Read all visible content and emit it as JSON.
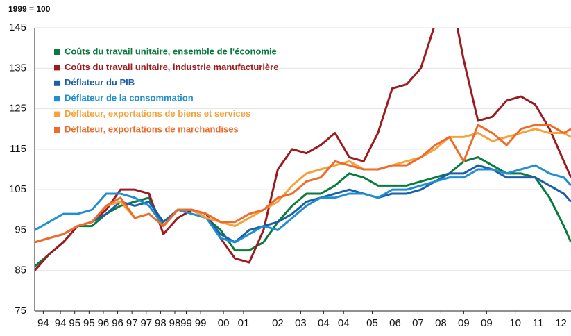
{
  "chart_data": {
    "type": "line",
    "subtitle": "1999 = 100",
    "x": [
      1994,
      1994.5,
      1995,
      1995.5,
      1996,
      1996.5,
      1997,
      1997.5,
      1998,
      1998.5,
      1999,
      1999.5,
      2000,
      2000.5,
      2001,
      2001.5,
      2002,
      2002.5,
      2003,
      2003.5,
      2004,
      2004.5,
      2005,
      2005.5,
      2006,
      2006.5,
      2007,
      2007.5,
      2008,
      2008.5,
      2009,
      2009.5,
      2010,
      2010.5,
      2011,
      2011.5,
      2012,
      2012.5,
      2012.75
    ],
    "series": [
      {
        "name": "Coûts du travail unitaire, ensemble de l'économie",
        "color": "#0a7a3e",
        "values": [
          86,
          89,
          92,
          96,
          96,
          99,
          101,
          102,
          103,
          96,
          100,
          100,
          98,
          95,
          90,
          90,
          92,
          97,
          101,
          104,
          104,
          106,
          109,
          108,
          106,
          106,
          106,
          107,
          108,
          109,
          112,
          113,
          111,
          109,
          109,
          108,
          103,
          96,
          92
        ]
      },
      {
        "name": "Coûts du travail unitaire, industrie manufacturière",
        "color": "#9b1b1e",
        "values": [
          85,
          89,
          92,
          96,
          97,
          100,
          105,
          105,
          104,
          94,
          98,
          100,
          99,
          93,
          88,
          87,
          95,
          110,
          115,
          114,
          116,
          119,
          113,
          112,
          119,
          130,
          131,
          135,
          146,
          155,
          137,
          122,
          123,
          127,
          128,
          126,
          120,
          112,
          108
        ]
      },
      {
        "name": "Déflateur du PIB",
        "color": "#1a5fa8",
        "values": [
          92,
          93,
          94,
          96,
          97,
          99,
          102,
          101,
          102,
          97,
          100,
          100,
          98,
          94,
          92,
          95,
          96,
          97,
          99,
          102,
          103,
          104,
          105,
          104,
          103,
          104,
          104,
          105,
          107,
          109,
          109,
          111,
          110,
          108,
          108,
          108,
          106,
          104,
          102
        ]
      },
      {
        "name": "Déflateur de la consommation",
        "color": "#1f8fcf",
        "values": [
          95,
          97,
          99,
          99,
          100,
          104,
          104,
          103,
          101,
          96,
          100,
          99,
          98,
          93,
          92,
          94,
          96,
          95,
          98,
          101,
          103,
          103,
          104,
          104,
          103,
          105,
          105,
          106,
          107,
          108,
          108,
          110,
          110,
          109,
          110,
          111,
          109,
          108,
          106
        ]
      },
      {
        "name": "Déflateur, exportations de biens et services",
        "color": "#f5a23a",
        "values": [
          92,
          93,
          94,
          96,
          97,
          101,
          102,
          98,
          99,
          96,
          100,
          100,
          98,
          97,
          96,
          98,
          100,
          102,
          106,
          109,
          110,
          111,
          112,
          110,
          110,
          111,
          112,
          113,
          115,
          118,
          118,
          119,
          117,
          118,
          119,
          120,
          119,
          119,
          118
        ]
      },
      {
        "name": "Déflateur, exportations de marchandises",
        "color": "#ee6b2a",
        "values": [
          92,
          93,
          94,
          96,
          97,
          101,
          103,
          98,
          99,
          96,
          100,
          100,
          99,
          97,
          97,
          99,
          100,
          103,
          104,
          107,
          108,
          112,
          111,
          110,
          110,
          111,
          111,
          113,
          116,
          118,
          112,
          121,
          119,
          116,
          120,
          121,
          121,
          119,
          120
        ]
      }
    ],
    "xlim": [
      1994,
      2012.75
    ],
    "xticks": [
      {
        "value": 1994.3,
        "label": "94"
      },
      {
        "value": 1994.9,
        "label": "94"
      },
      {
        "value": 1995.4,
        "label": "95"
      },
      {
        "value": 1995.9,
        "label": "95"
      },
      {
        "value": 1996.4,
        "label": "96"
      },
      {
        "value": 1996.9,
        "label": "96"
      },
      {
        "value": 1997.4,
        "label": "97"
      },
      {
        "value": 1997.9,
        "label": "97"
      },
      {
        "value": 1998.4,
        "label": "98"
      },
      {
        "value": 1998.9,
        "label": "98"
      },
      {
        "value": 1999.3,
        "label": "99"
      },
      {
        "value": 1999.8,
        "label": "99"
      },
      {
        "value": 2000.6,
        "label": "00"
      },
      {
        "value": 2001.3,
        "label": "01"
      },
      {
        "value": 2002.5,
        "label": "02"
      },
      {
        "value": 2003.3,
        "label": "03"
      },
      {
        "value": 2004.1,
        "label": "04"
      },
      {
        "value": 2004.8,
        "label": "04"
      },
      {
        "value": 2005.8,
        "label": "05"
      },
      {
        "value": 2006.6,
        "label": "06"
      },
      {
        "value": 2007.4,
        "label": "07"
      },
      {
        "value": 2008.2,
        "label": "08"
      },
      {
        "value": 2009.0,
        "label": "09"
      },
      {
        "value": 2009.8,
        "label": "09"
      },
      {
        "value": 2010.8,
        "label": "10"
      },
      {
        "value": 2011.6,
        "label": "11"
      },
      {
        "value": 2012.4,
        "label": "12"
      }
    ],
    "ylim": [
      75,
      145
    ],
    "yticks": [
      75,
      85,
      95,
      105,
      115,
      125,
      135,
      145
    ],
    "grid": true,
    "legend": "top-left"
  }
}
